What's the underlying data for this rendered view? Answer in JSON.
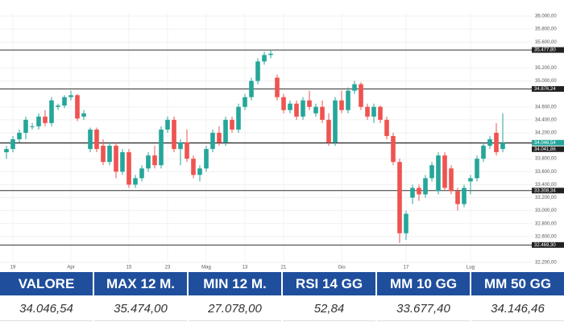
{
  "chart_data": {
    "type": "candlestick",
    "categories": [
      null,
      "19",
      null,
      null,
      null,
      null,
      null,
      null,
      null,
      null,
      "Apr",
      null,
      null,
      null,
      null,
      null,
      null,
      null,
      null,
      "15",
      null,
      null,
      null,
      null,
      null,
      "23",
      null,
      null,
      null,
      null,
      null,
      "Mag",
      null,
      null,
      null,
      null,
      null,
      "13",
      null,
      null,
      null,
      null,
      null,
      "21",
      null,
      null,
      null,
      null,
      null,
      null,
      null,
      null,
      "Giu",
      null,
      null,
      null,
      null,
      null,
      null,
      null,
      null,
      null,
      "17",
      null,
      null,
      null,
      null,
      null,
      null,
      null,
      null,
      null,
      "Lug",
      null,
      null,
      null,
      null,
      null
    ],
    "open": [
      33900,
      33950,
      34100,
      34200,
      34300,
      34300,
      34450,
      34350,
      34600,
      34620,
      34750,
      34780,
      34450,
      33950,
      34250,
      34000,
      33750,
      34000,
      33600,
      33900,
      33400,
      33500,
      33650,
      33850,
      33700,
      34250,
      34400,
      33950,
      34050,
      33800,
      33550,
      33650,
      33950,
      34200,
      34050,
      34400,
      34250,
      34600,
      34750,
      35000,
      35300,
      35400,
      35050,
      34750,
      34550,
      34650,
      34450,
      34700,
      34500,
      34600,
      34400,
      34050,
      34700,
      34550,
      34850,
      34950,
      34600,
      34450,
      34600,
      34400,
      34150,
      33750,
      32650,
      33200,
      33350,
      33250,
      33500,
      33300,
      33850,
      33650,
      33300,
      33100,
      33450,
      33500,
      33800,
      34000,
      34200,
      33950
    ],
    "high": [
      34000,
      34150,
      34250,
      34450,
      34350,
      34500,
      34550,
      34750,
      34650,
      34780,
      34850,
      34800,
      34550,
      34280,
      34280,
      34100,
      34050,
      34050,
      33950,
      33950,
      33550,
      33700,
      33900,
      34000,
      34300,
      34450,
      34450,
      34100,
      34250,
      33850,
      33700,
      34000,
      34250,
      34300,
      34450,
      34450,
      34650,
      34800,
      35050,
      35350,
      35450,
      35480,
      35100,
      34800,
      34700,
      34700,
      34750,
      34850,
      34650,
      34700,
      34500,
      34750,
      34850,
      34900,
      35000,
      34980,
      34650,
      34650,
      34620,
      34450,
      34200,
      33800,
      33000,
      33400,
      33400,
      33550,
      33750,
      33900,
      33900,
      33700,
      33350,
      33400,
      33550,
      33850,
      34050,
      34150,
      34350,
      34500
    ],
    "low": [
      33800,
      33900,
      34050,
      34100,
      34250,
      34250,
      34300,
      34300,
      34550,
      34580,
      34700,
      34380,
      34400,
      33900,
      33900,
      33700,
      33700,
      33500,
      33550,
      33350,
      33350,
      33450,
      33600,
      33650,
      33650,
      34200,
      33900,
      33700,
      33750,
      33500,
      33450,
      33600,
      33900,
      34000,
      34000,
      34200,
      34200,
      34550,
      34700,
      34950,
      35250,
      35350,
      34700,
      34500,
      34500,
      34400,
      34400,
      34550,
      34450,
      34350,
      34000,
      34000,
      34500,
      34500,
      34800,
      34550,
      34400,
      34350,
      34350,
      34100,
      33700,
      32500,
      32550,
      33100,
      33150,
      33200,
      33450,
      33250,
      33300,
      33250,
      33000,
      33050,
      33250,
      33450,
      33750,
      33950,
      33850,
      33900
    ],
    "close": [
      33950,
      34100,
      34200,
      34400,
      34300,
      34450,
      34350,
      34700,
      34620,
      34750,
      34780,
      34420,
      34500,
      34250,
      33950,
      33750,
      34000,
      33600,
      33900,
      33400,
      33500,
      33650,
      33850,
      33700,
      34250,
      34400,
      33950,
      34050,
      33800,
      33550,
      33650,
      33950,
      34200,
      34050,
      34400,
      34250,
      34600,
      34750,
      35000,
      35300,
      35400,
      35420,
      34750,
      34550,
      34650,
      34450,
      34700,
      34600,
      34600,
      34400,
      34050,
      34700,
      34550,
      34850,
      34950,
      34600,
      34450,
      34600,
      34400,
      34150,
      33750,
      32650,
      32950,
      33350,
      33250,
      33500,
      33700,
      33850,
      33350,
      33300,
      33100,
      33350,
      33500,
      33800,
      34000,
      34100,
      33900,
      34046.54
    ],
    "up_color": "#26a69a",
    "down_color": "#ef5350",
    "ylim": [
      32200,
      36050
    ],
    "yticks": [
      {
        "value": 36000,
        "label": "36.000,00"
      },
      {
        "value": 35800,
        "label": "35.800,00"
      },
      {
        "value": 35600,
        "label": "35.600,00"
      },
      {
        "value": 35200,
        "label": "35.200,00"
      },
      {
        "value": 35000,
        "label": "35.000,00"
      },
      {
        "value": 34600,
        "label": "34.600,00"
      },
      {
        "value": 34400,
        "label": "34.400,00"
      },
      {
        "value": 34200,
        "label": "34.200,00"
      },
      {
        "value": 33800,
        "label": "33.800,00"
      },
      {
        "value": 33600,
        "label": "33.600,00"
      },
      {
        "value": 33400,
        "label": "33.400,00"
      },
      {
        "value": 33200,
        "label": "33.200,00"
      },
      {
        "value": 33000,
        "label": "33.000,00"
      },
      {
        "value": 32800,
        "label": "32.800,00"
      },
      {
        "value": 32600,
        "label": "32.600,00"
      },
      {
        "value": 32200,
        "label": "32.200,00"
      }
    ],
    "grid": true,
    "levels": [
      {
        "value": 35477.8,
        "label": "35.477,80",
        "color": "#222222"
      },
      {
        "value": 34876.24,
        "label": "34.876,24",
        "color": "#222222"
      },
      {
        "value": 34046.54,
        "label": "34.046,54",
        "color": "#26a69a"
      },
      {
        "value": 34041.86,
        "label": "34.041,86",
        "color": "#222222"
      },
      {
        "value": 33308.34,
        "label": "33.308,34",
        "color": "#222222"
      },
      {
        "value": 32469.3,
        "label": "32.469,30",
        "color": "#222222"
      }
    ]
  },
  "table": {
    "header": [
      "VALORE",
      "MAX 12 M.",
      "MIN 12 M.",
      "RSI 14 GG",
      "MM 10 GG",
      "MM 50 GG"
    ],
    "rows": [
      [
        "34.046,54",
        "35.474,00",
        "27.078,00",
        "52,84",
        "33.677,40",
        "34.146,46"
      ]
    ]
  }
}
